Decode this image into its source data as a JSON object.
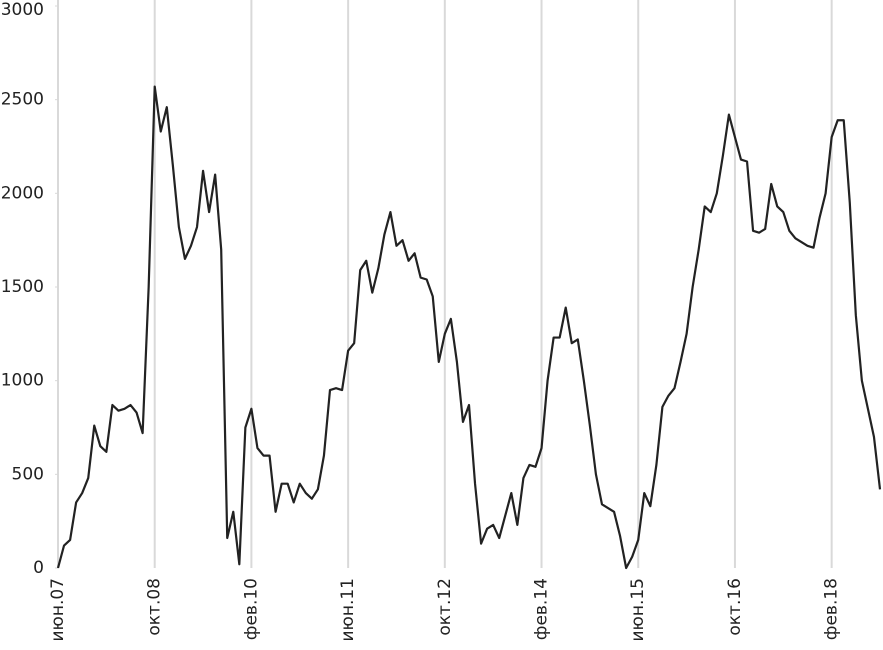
{
  "chart_data": {
    "type": "line",
    "categories": [
      "июн.07",
      null,
      null,
      null,
      null,
      null,
      null,
      null,
      null,
      null,
      null,
      null,
      null,
      null,
      null,
      null,
      "окт.08",
      null,
      null,
      null,
      null,
      null,
      null,
      null,
      null,
      null,
      null,
      null,
      null,
      null,
      null,
      null,
      "фев.10",
      null,
      null,
      null,
      null,
      null,
      null,
      null,
      null,
      null,
      null,
      null,
      null,
      null,
      null,
      null,
      "июн.11",
      null,
      null,
      null,
      null,
      null,
      null,
      null,
      null,
      null,
      null,
      null,
      null,
      null,
      null,
      null,
      "окт.12",
      null,
      null,
      null,
      null,
      null,
      null,
      null,
      null,
      null,
      null,
      null,
      null,
      null,
      null,
      null,
      "фев.14",
      null,
      null,
      null,
      null,
      null,
      null,
      null,
      null,
      null,
      null,
      null,
      null,
      null,
      null,
      null,
      "июн.15",
      null,
      null,
      null,
      null,
      null,
      null,
      null,
      null,
      null,
      null,
      null,
      null,
      null,
      null,
      null,
      "окт.16",
      null,
      null,
      null,
      null,
      null,
      null,
      null,
      null,
      null,
      null,
      null,
      null,
      null,
      null,
      null,
      "фев.18",
      null,
      null,
      null,
      null,
      null,
      null,
      null,
      null
    ],
    "values": [
      0,
      120,
      150,
      350,
      400,
      480,
      760,
      650,
      620,
      870,
      840,
      850,
      870,
      830,
      720,
      1500,
      2570,
      2330,
      2460,
      2150,
      1820,
      1650,
      1720,
      1820,
      2120,
      1900,
      2100,
      1700,
      160,
      300,
      20,
      750,
      850,
      640,
      600,
      600,
      300,
      450,
      450,
      350,
      450,
      400,
      370,
      420,
      600,
      950,
      960,
      950,
      1160,
      1200,
      1590,
      1640,
      1470,
      1600,
      1780,
      1900,
      1720,
      1750,
      1640,
      1680,
      1550,
      1540,
      1450,
      1100,
      1250,
      1330,
      1100,
      780,
      870,
      450,
      130,
      210,
      230,
      160,
      280,
      400,
      230,
      480,
      550,
      540,
      640,
      1000,
      1230,
      1230,
      1390,
      1200,
      1220,
      1000,
      760,
      500,
      340,
      320,
      300,
      170,
      0,
      60,
      150,
      400,
      330,
      550,
      860,
      920,
      960,
      1100,
      1250,
      1500,
      1700,
      1930,
      1900,
      2000,
      2200,
      2420,
      2300,
      2180,
      2170,
      1800,
      1790,
      1810,
      2050,
      1930,
      1900,
      1800,
      1760,
      1740,
      1720,
      1710,
      1870,
      2000,
      2300,
      2390,
      2390,
      1950,
      1350,
      1000,
      850,
      700,
      420
    ],
    "color": "#222222",
    "ylim": [
      0,
      3000
    ],
    "yticks": [
      0,
      500,
      1000,
      1500,
      2000,
      2500,
      3000
    ]
  }
}
